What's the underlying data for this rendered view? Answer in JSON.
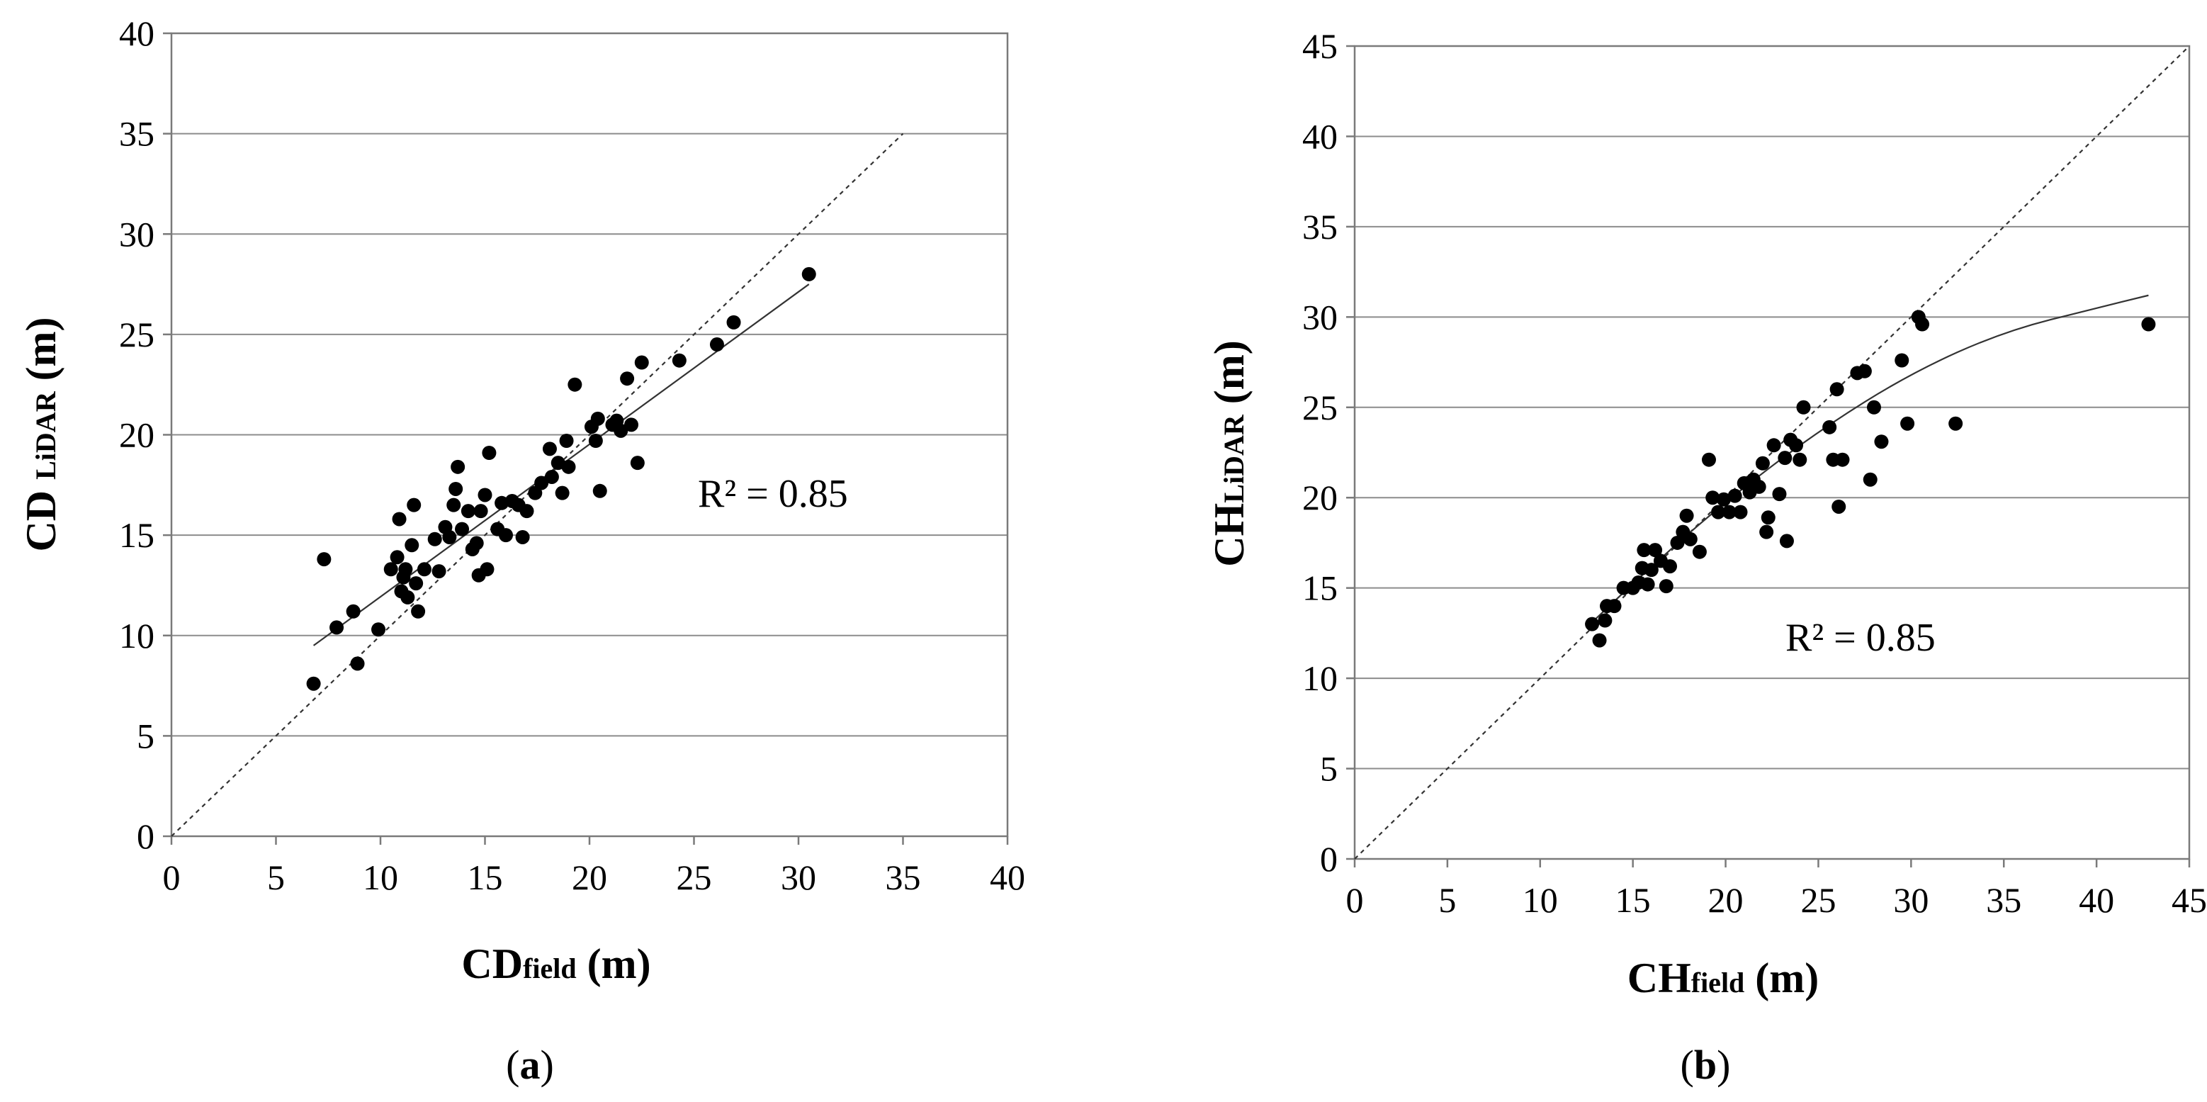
{
  "chart_data": [
    {
      "type": "scatter",
      "panel_label": {
        "open": "(",
        "letter": "a",
        "close": ")"
      },
      "xlabel": {
        "main": "CD",
        "sub": "field",
        "unit": " (m)"
      },
      "ylabel": {
        "main": "CD ",
        "sub": "LiDAR",
        "unit": " (m)"
      },
      "xlim": [
        0,
        40
      ],
      "ylim": [
        0,
        40
      ],
      "xticks": [
        0,
        5,
        10,
        15,
        20,
        25,
        30,
        35,
        40
      ],
      "yticks": [
        0,
        5,
        10,
        15,
        20,
        25,
        30,
        35,
        40
      ],
      "grid": "horizontal",
      "annotation": "R² = 0.85",
      "one_to_one": [
        [
          0,
          0
        ],
        [
          35,
          35
        ]
      ],
      "fit_line": [
        [
          6.8,
          9.5
        ],
        [
          30.5,
          27.5
        ]
      ],
      "points": [
        [
          6.8,
          7.6
        ],
        [
          7.3,
          13.8
        ],
        [
          7.9,
          10.4
        ],
        [
          8.7,
          11.2
        ],
        [
          8.9,
          8.6
        ],
        [
          9.9,
          10.3
        ],
        [
          10.5,
          13.3
        ],
        [
          10.8,
          13.9
        ],
        [
          10.9,
          15.8
        ],
        [
          11.0,
          12.2
        ],
        [
          11.1,
          12.9
        ],
        [
          11.2,
          13.3
        ],
        [
          11.3,
          11.9
        ],
        [
          11.5,
          14.5
        ],
        [
          11.6,
          16.5
        ],
        [
          11.7,
          12.6
        ],
        [
          11.8,
          11.2
        ],
        [
          12.1,
          13.3
        ],
        [
          12.6,
          14.8
        ],
        [
          12.8,
          13.2
        ],
        [
          13.1,
          15.4
        ],
        [
          13.3,
          14.9
        ],
        [
          13.5,
          16.5
        ],
        [
          13.6,
          17.3
        ],
        [
          13.7,
          18.4
        ],
        [
          13.9,
          15.3
        ],
        [
          14.2,
          16.2
        ],
        [
          14.4,
          14.3
        ],
        [
          14.6,
          14.6
        ],
        [
          14.7,
          13.0
        ],
        [
          14.8,
          16.2
        ],
        [
          15.0,
          17.0
        ],
        [
          15.1,
          13.3
        ],
        [
          15.2,
          19.1
        ],
        [
          15.6,
          15.3
        ],
        [
          15.8,
          16.6
        ],
        [
          16.0,
          15.0
        ],
        [
          16.3,
          16.7
        ],
        [
          16.6,
          16.5
        ],
        [
          16.8,
          14.9
        ],
        [
          17.0,
          16.2
        ],
        [
          17.4,
          17.1
        ],
        [
          17.7,
          17.6
        ],
        [
          18.1,
          19.3
        ],
        [
          18.2,
          17.9
        ],
        [
          18.5,
          18.6
        ],
        [
          18.7,
          17.1
        ],
        [
          18.9,
          19.7
        ],
        [
          19.0,
          18.4
        ],
        [
          19.3,
          22.5
        ],
        [
          20.1,
          20.4
        ],
        [
          20.3,
          19.7
        ],
        [
          20.4,
          20.8
        ],
        [
          20.5,
          17.2
        ],
        [
          21.1,
          20.5
        ],
        [
          21.3,
          20.7
        ],
        [
          21.5,
          20.2
        ],
        [
          21.8,
          22.8
        ],
        [
          22.0,
          20.5
        ],
        [
          22.3,
          18.6
        ],
        [
          22.5,
          23.6
        ],
        [
          24.3,
          23.7
        ],
        [
          26.1,
          24.5
        ],
        [
          26.9,
          25.6
        ],
        [
          30.5,
          28.0
        ]
      ]
    },
    {
      "type": "scatter",
      "panel_label": {
        "open": "(",
        "letter": "b",
        "close": ")"
      },
      "xlabel": {
        "main": "CH",
        "sub": "field",
        "unit": " (m)"
      },
      "ylabel": {
        "main": "CH",
        "sub": "LiDAR",
        "unit": " (m)"
      },
      "xlim": [
        0,
        45
      ],
      "ylim": [
        0,
        45
      ],
      "xticks": [
        0,
        5,
        10,
        15,
        20,
        25,
        30,
        35,
        40,
        45
      ],
      "yticks": [
        0,
        5,
        10,
        15,
        20,
        25,
        30,
        35,
        40,
        45
      ],
      "grid": "horizontal",
      "annotation": "R² = 0.85",
      "one_to_one": [
        [
          0,
          0
        ],
        [
          45,
          45
        ]
      ],
      "fit_curve": [
        [
          12.8,
          13.1
        ],
        [
          16,
          16.2
        ],
        [
          20,
          19.8
        ],
        [
          25,
          23.7
        ],
        [
          30,
          26.9
        ],
        [
          35,
          29.2
        ],
        [
          40,
          30.5
        ],
        [
          42.8,
          31.2
        ]
      ],
      "points": [
        [
          12.8,
          13.0
        ],
        [
          13.2,
          12.1
        ],
        [
          13.5,
          13.2
        ],
        [
          13.6,
          14.0
        ],
        [
          14.0,
          14.0
        ],
        [
          14.5,
          15.0
        ],
        [
          15.0,
          15.0
        ],
        [
          15.3,
          15.3
        ],
        [
          15.5,
          16.1
        ],
        [
          15.6,
          17.1
        ],
        [
          15.8,
          15.2
        ],
        [
          16.0,
          16.0
        ],
        [
          16.2,
          17.1
        ],
        [
          16.5,
          16.5
        ],
        [
          16.8,
          15.1
        ],
        [
          17.0,
          16.2
        ],
        [
          17.4,
          17.5
        ],
        [
          17.7,
          18.1
        ],
        [
          17.9,
          19.0
        ],
        [
          18.1,
          17.7
        ],
        [
          18.6,
          17.0
        ],
        [
          19.1,
          22.1
        ],
        [
          19.3,
          20.0
        ],
        [
          19.6,
          19.2
        ],
        [
          19.9,
          19.9
        ],
        [
          20.2,
          19.2
        ],
        [
          20.5,
          20.1
        ],
        [
          20.8,
          19.2
        ],
        [
          21.0,
          20.8
        ],
        [
          21.3,
          20.3
        ],
        [
          21.5,
          21.0
        ],
        [
          21.8,
          20.6
        ],
        [
          22.0,
          21.9
        ],
        [
          22.2,
          18.1
        ],
        [
          22.3,
          18.9
        ],
        [
          22.6,
          22.9
        ],
        [
          22.9,
          20.2
        ],
        [
          23.2,
          22.2
        ],
        [
          23.3,
          17.6
        ],
        [
          23.5,
          23.2
        ],
        [
          23.8,
          22.9
        ],
        [
          24.0,
          22.1
        ],
        [
          24.2,
          25.0
        ],
        [
          25.6,
          23.9
        ],
        [
          25.8,
          22.1
        ],
        [
          26.0,
          26.0
        ],
        [
          26.1,
          19.5
        ],
        [
          26.3,
          22.1
        ],
        [
          27.1,
          26.9
        ],
        [
          27.5,
          27.0
        ],
        [
          27.8,
          21.0
        ],
        [
          28.0,
          25.0
        ],
        [
          28.4,
          23.1
        ],
        [
          29.5,
          27.6
        ],
        [
          29.8,
          24.1
        ],
        [
          30.4,
          30.0
        ],
        [
          30.6,
          29.6
        ],
        [
          32.4,
          24.1
        ],
        [
          42.8,
          29.6
        ]
      ]
    }
  ]
}
